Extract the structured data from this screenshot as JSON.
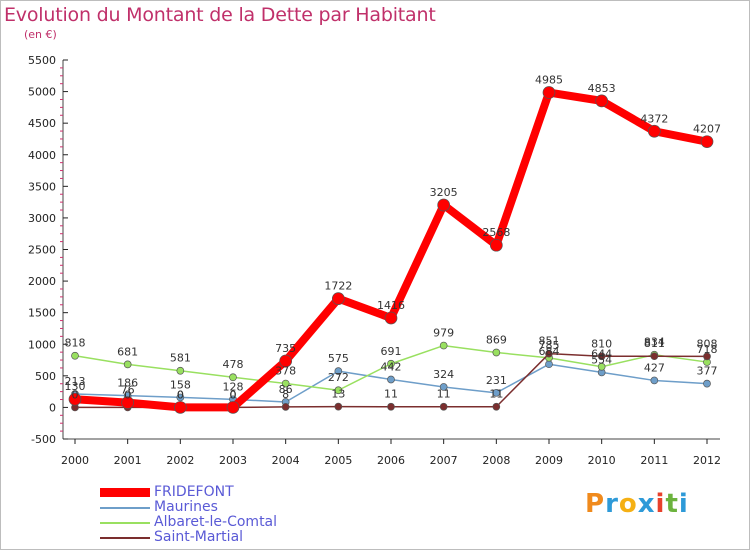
{
  "header": {
    "title": "Evolution du Montant de la Dette par Habitant",
    "subtitle": "(en €)"
  },
  "logo": {
    "letters": [
      "P",
      "r",
      "o",
      "x",
      "i",
      "t",
      "i"
    ],
    "colors": [
      "#f08a1c",
      "#2e9ad8",
      "#f5b014",
      "#2e9ad8",
      "#e8412c",
      "#6cb33e",
      "#2e9ad8"
    ]
  },
  "chart_data": {
    "type": "line",
    "x": [
      "2000",
      "2001",
      "2002",
      "2003",
      "2004",
      "2005",
      "2006",
      "2007",
      "2008",
      "2009",
      "2010",
      "2011",
      "2012"
    ],
    "ylim": [
      -500,
      5500
    ],
    "yticks": [
      "-500",
      "0",
      "500",
      "1000",
      "1500",
      "2000",
      "2500",
      "3000",
      "3500",
      "4000",
      "4500",
      "5000",
      "5500"
    ],
    "grid": false,
    "legend_position": "bottom-left",
    "series": [
      {
        "name": "FRIDEFONT",
        "color": "#ff0000",
        "values": [
          130,
          76,
          0,
          0,
          735,
          1722,
          1416,
          3205,
          2568,
          4985,
          4853,
          4372,
          4207
        ],
        "labels": [
          "130",
          "76",
          "0",
          "0",
          "735",
          "1722",
          "1416",
          "3205",
          "2568",
          "4985",
          "4853",
          "4372",
          "4207"
        ]
      },
      {
        "name": "Maurines",
        "color": "#6e9ec9",
        "values": [
          213,
          186,
          158,
          128,
          86,
          575,
          442,
          324,
          231,
          684,
          554,
          427,
          377
        ],
        "labels": [
          "213",
          "186",
          "158",
          "128",
          "86",
          "575",
          "442",
          "324",
          "231",
          "684",
          "554",
          "427",
          "377"
        ]
      },
      {
        "name": "Albaret-le-Comtal",
        "color": "#99e060",
        "values": [
          818,
          681,
          581,
          478,
          378,
          272,
          691,
          979,
          869,
          785,
          644,
          834,
          718
        ],
        "labels": [
          "818",
          "681",
          "581",
          "478",
          "378",
          "272",
          "691",
          "979",
          "869",
          "785",
          "644",
          "834",
          "718"
        ]
      },
      {
        "name": "Saint-Martial",
        "color": "#7b2e2e",
        "values": [
          0,
          0,
          0,
          0,
          8,
          13,
          11,
          11,
          11,
          851,
          810,
          811,
          808
        ],
        "labels": [
          "0",
          "0",
          "0",
          "0",
          "8",
          "13",
          "11",
          "11",
          "11",
          "851",
          "810",
          "811",
          "808"
        ]
      }
    ]
  }
}
